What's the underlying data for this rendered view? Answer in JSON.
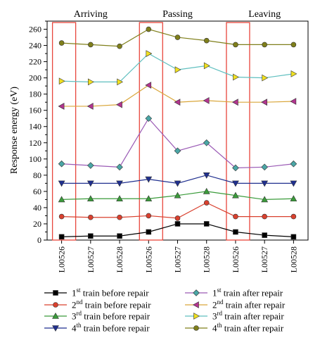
{
  "chart_data": {
    "type": "line",
    "ylabel": "Response energy (eV)",
    "ylim": [
      0,
      270
    ],
    "yticks": [
      0,
      20,
      40,
      60,
      80,
      100,
      120,
      140,
      160,
      180,
      200,
      220,
      240,
      260
    ],
    "categories": [
      "L00526",
      "L00527",
      "L00528",
      "L00526",
      "L00527",
      "L00528",
      "L00526",
      "L00527",
      "L00528"
    ],
    "groups": [
      {
        "label": "Arriving",
        "from": 0,
        "to": 2
      },
      {
        "label": "Passing",
        "from": 3,
        "to": 5
      },
      {
        "label": "Leaving",
        "from": 6,
        "to": 8
      }
    ],
    "group_box_color": "#e8463c",
    "series": [
      {
        "ordinal": "1",
        "sup": "st",
        "text": " train before repair",
        "marker": "square",
        "color": "#000000",
        "values": [
          4,
          5,
          5,
          10,
          20,
          20,
          10,
          6,
          4
        ]
      },
      {
        "ordinal": "2",
        "sup": "nd",
        "text": " train before repair",
        "marker": "circle",
        "color": "#d9402e",
        "values": [
          29,
          28,
          28,
          30,
          27,
          46,
          29,
          29,
          29
        ]
      },
      {
        "ordinal": "3",
        "sup": "rd",
        "text": " train before repair",
        "marker": "triangle-up",
        "color": "#3a9b3a",
        "values": [
          50,
          51,
          51,
          51,
          55,
          60,
          55,
          50,
          51
        ]
      },
      {
        "ordinal": "4",
        "sup": "th",
        "text": " train before repair",
        "marker": "triangle-down",
        "color": "#1f2f8f",
        "values": [
          70,
          70,
          70,
          75,
          70,
          80,
          70,
          70,
          70
        ]
      },
      {
        "ordinal": "1",
        "sup": "st",
        "text": " train after repair",
        "marker": "diamond",
        "color": "#4aa6a6",
        "values": [
          94,
          92,
          90,
          150,
          110,
          120,
          89,
          90,
          94
        ]
      },
      {
        "ordinal": "2",
        "sup": "nd",
        "text": " train after repair",
        "marker": "triangle-left",
        "color": "#b2358f",
        "values": [
          165,
          165,
          167,
          191,
          170,
          172,
          170,
          170,
          171
        ]
      },
      {
        "ordinal": "3",
        "sup": "rd",
        "text": " train after repair",
        "marker": "triangle-right",
        "color": "#f0e020",
        "values": [
          196,
          195,
          195,
          230,
          210,
          215,
          201,
          200,
          205
        ]
      },
      {
        "ordinal": "4",
        "sup": "th",
        "text": " train after repair",
        "marker": "circle",
        "color": "#7f7f1a",
        "values": [
          243,
          241,
          239,
          260,
          250,
          246,
          241,
          241,
          241
        ]
      }
    ],
    "line_colors": [
      "#000000",
      "#d9402e",
      "#3a9b3a",
      "#1f2f8f",
      "#9a5ab5",
      "#d9a63a",
      "#5fbfbf",
      "#7f7f1a"
    ],
    "grid": false,
    "legend_position": "bottom"
  }
}
